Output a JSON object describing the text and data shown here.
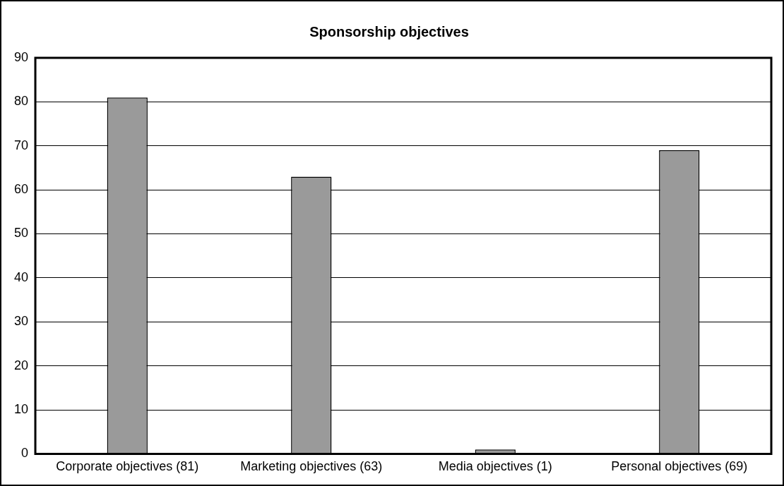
{
  "chart_data": {
    "type": "bar",
    "title": "Sponsorship objectives",
    "categories": [
      "Corporate objectives (81)",
      "Marketing objectives (63)",
      "Media objectives (1)",
      "Personal objectives (69)"
    ],
    "values": [
      81,
      63,
      1,
      69
    ],
    "color": "#9a9a9a",
    "ylim": [
      0,
      90
    ],
    "yticks": [
      0,
      10,
      20,
      30,
      40,
      50,
      60,
      70,
      80,
      90
    ],
    "grid": "y",
    "legend": false
  }
}
